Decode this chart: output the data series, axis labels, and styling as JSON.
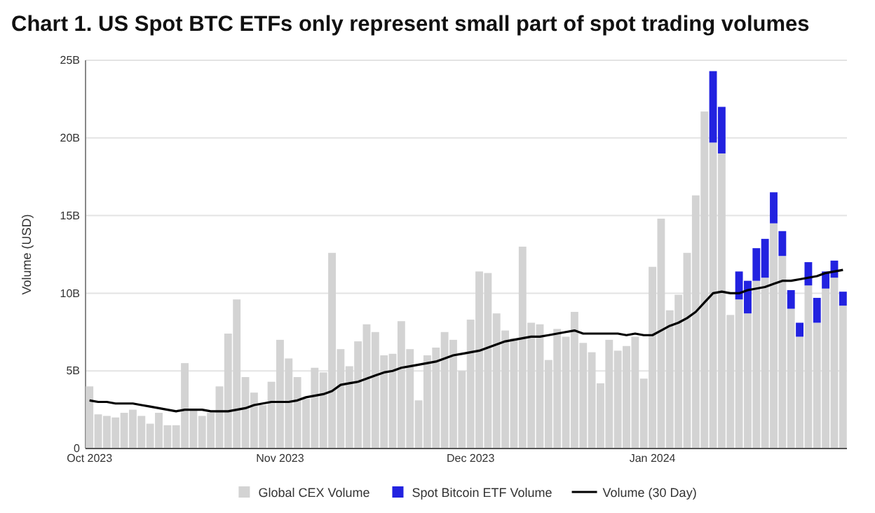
{
  "chart_data": {
    "type": "bar",
    "title": "Chart 1. US Spot BTC ETFs only represent small part of spot trading volumes",
    "ylabel": "Volume (USD)",
    "categories": [
      "Oct 2023",
      null,
      null,
      null,
      null,
      null,
      null,
      null,
      null,
      null,
      null,
      null,
      null,
      null,
      null,
      null,
      null,
      null,
      null,
      null,
      null,
      null,
      "Nov 2023",
      null,
      null,
      null,
      null,
      null,
      null,
      null,
      null,
      null,
      null,
      null,
      null,
      null,
      null,
      null,
      null,
      null,
      null,
      null,
      null,
      null,
      "Dec 2023",
      null,
      null,
      null,
      null,
      null,
      null,
      null,
      null,
      null,
      null,
      null,
      null,
      null,
      null,
      null,
      null,
      null,
      null,
      null,
      null,
      "Jan 2024",
      null,
      null,
      null,
      null,
      null,
      null,
      null,
      null,
      null,
      null,
      null,
      null,
      null,
      null,
      null,
      null,
      null,
      null,
      null,
      null,
      null,
      null
    ],
    "series": [
      {
        "name": "Global CEX Volume",
        "color": "#d3d3d3",
        "values": [
          4.0,
          2.2,
          2.1,
          2.0,
          2.3,
          2.5,
          2.1,
          1.6,
          2.3,
          1.5,
          1.5,
          5.5,
          2.5,
          2.1,
          2.3,
          4.0,
          7.4,
          9.6,
          4.6,
          3.6,
          2.8,
          4.3,
          7.0,
          5.8,
          4.6,
          3.2,
          5.2,
          4.9,
          12.6,
          6.4,
          5.3,
          6.9,
          8.0,
          7.5,
          6.0,
          6.1,
          8.2,
          6.4,
          3.1,
          6.0,
          6.5,
          7.5,
          7.0,
          5.0,
          8.3,
          11.4,
          11.3,
          8.7,
          7.6,
          7.1,
          13.0,
          8.1,
          8.0,
          5.7,
          7.7,
          7.2,
          8.8,
          6.8,
          6.2,
          4.2,
          7.0,
          6.3,
          6.6,
          7.2,
          4.5,
          11.7,
          14.8,
          8.9,
          9.9,
          12.6,
          16.3,
          21.7,
          19.7,
          19.0,
          8.6,
          9.6,
          8.7,
          10.8,
          11.0,
          14.5,
          12.4,
          9.0,
          7.2,
          10.5,
          8.1,
          10.3,
          11.0,
          9.2
        ]
      },
      {
        "name": "Spot Bitcoin ETF Volume",
        "color": "#2222e0",
        "base": [
          null,
          null,
          null,
          null,
          null,
          null,
          null,
          null,
          null,
          null,
          null,
          null,
          null,
          null,
          null,
          null,
          null,
          null,
          null,
          null,
          null,
          null,
          null,
          null,
          null,
          null,
          null,
          null,
          null,
          null,
          null,
          null,
          null,
          null,
          null,
          null,
          null,
          null,
          null,
          null,
          null,
          null,
          null,
          null,
          null,
          null,
          null,
          null,
          null,
          null,
          null,
          null,
          null,
          null,
          null,
          null,
          null,
          null,
          null,
          null,
          null,
          null,
          null,
          null,
          null,
          null,
          null,
          null,
          null,
          null,
          null,
          null,
          19.7,
          19.0,
          null,
          9.6,
          8.7,
          10.8,
          11.0,
          14.5,
          12.4,
          9.0,
          7.2,
          10.5,
          8.1,
          10.3,
          11.0,
          9.2
        ],
        "values": [
          null,
          null,
          null,
          null,
          null,
          null,
          null,
          null,
          null,
          null,
          null,
          null,
          null,
          null,
          null,
          null,
          null,
          null,
          null,
          null,
          null,
          null,
          null,
          null,
          null,
          null,
          null,
          null,
          null,
          null,
          null,
          null,
          null,
          null,
          null,
          null,
          null,
          null,
          null,
          null,
          null,
          null,
          null,
          null,
          null,
          null,
          null,
          null,
          null,
          null,
          null,
          null,
          null,
          null,
          null,
          null,
          null,
          null,
          null,
          null,
          null,
          null,
          null,
          null,
          null,
          null,
          null,
          null,
          null,
          null,
          null,
          null,
          4.6,
          3.0,
          null,
          1.8,
          2.1,
          2.1,
          2.5,
          2.0,
          1.6,
          1.2,
          0.9,
          1.5,
          1.6,
          1.1,
          1.1,
          0.9
        ]
      },
      {
        "name": "Volume (30 Day)",
        "type": "line",
        "color": "#000000",
        "values": [
          3.1,
          3.0,
          3.0,
          2.9,
          2.9,
          2.9,
          2.8,
          2.7,
          2.6,
          2.5,
          2.4,
          2.5,
          2.5,
          2.5,
          2.4,
          2.4,
          2.4,
          2.5,
          2.6,
          2.8,
          2.9,
          3.0,
          3.0,
          3.0,
          3.1,
          3.3,
          3.4,
          3.5,
          3.7,
          4.1,
          4.2,
          4.3,
          4.5,
          4.7,
          4.9,
          5.0,
          5.2,
          5.3,
          5.4,
          5.5,
          5.6,
          5.8,
          6.0,
          6.1,
          6.2,
          6.3,
          6.5,
          6.7,
          6.9,
          7.0,
          7.1,
          7.2,
          7.2,
          7.3,
          7.4,
          7.5,
          7.6,
          7.4,
          7.4,
          7.4,
          7.4,
          7.4,
          7.3,
          7.4,
          7.3,
          7.3,
          7.6,
          7.9,
          8.1,
          8.4,
          8.8,
          9.4,
          10.0,
          10.1,
          10.0,
          10.0,
          10.2,
          10.3,
          10.4,
          10.6,
          10.8,
          10.8,
          10.9,
          11.0,
          11.1,
          11.3,
          11.4,
          11.5
        ]
      }
    ],
    "ylim": [
      0,
      25
    ],
    "yticks": [
      0,
      {
        "value": 5,
        "label": "5B"
      },
      {
        "value": 10,
        "label": "10B"
      },
      {
        "value": 15,
        "label": "15B"
      },
      {
        "value": 20,
        "label": "20B"
      },
      {
        "value": 25,
        "label": "25B"
      }
    ],
    "grid": "y",
    "legend": "bottom",
    "marker": "none",
    "line_style": "solid"
  }
}
